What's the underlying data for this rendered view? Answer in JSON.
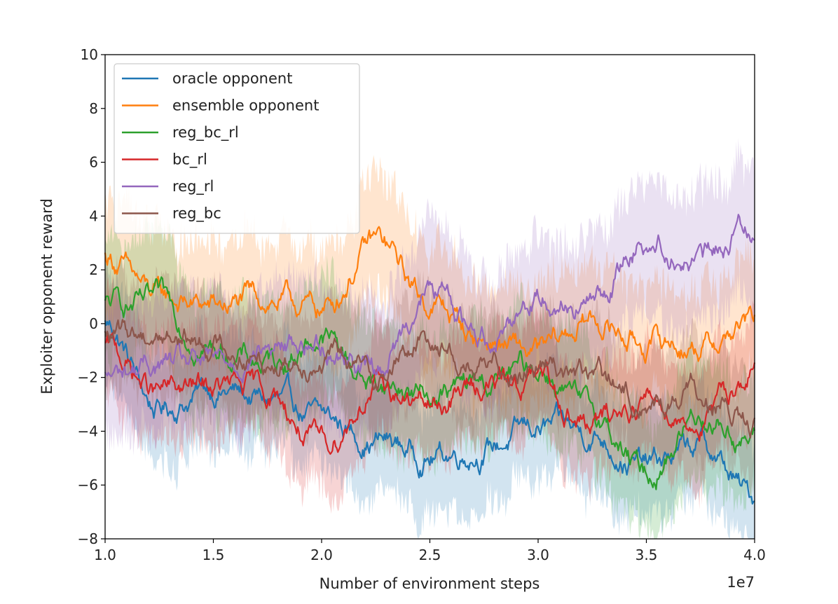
{
  "chart_data": {
    "type": "line",
    "title": "",
    "xlabel": "Number of environment steps",
    "ylabel": "Exploiter opponent reward",
    "x_offset_label": "1e7",
    "xlim": [
      1.0,
      4.0
    ],
    "ylim": [
      -8,
      10
    ],
    "xticks": [
      "1.0",
      "1.5",
      "2.0",
      "2.5",
      "3.0",
      "3.5",
      "4.0"
    ],
    "yticks": [
      "−8",
      "−6",
      "−4",
      "−2",
      "0",
      "2",
      "4",
      "6",
      "8",
      "10"
    ],
    "legend_position": "top-left",
    "x": [
      1.0,
      1.25,
      1.5,
      1.75,
      2.0,
      2.25,
      2.5,
      2.75,
      3.0,
      3.25,
      3.5,
      3.75,
      4.0
    ],
    "series": [
      {
        "name": "oracle opponent",
        "color": "#1f77b4",
        "values": [
          0.0,
          -3.2,
          -2.4,
          -2.9,
          -3.6,
          -4.3,
          -4.9,
          -4.6,
          -3.9,
          -4.1,
          -5.3,
          -4.6,
          -6.5
        ],
        "band": 2.0
      },
      {
        "name": "ensemble opponent",
        "color": "#ff7f0e",
        "values": [
          2.5,
          0.9,
          0.6,
          0.9,
          0.5,
          3.0,
          0.8,
          -0.6,
          -1.2,
          0.1,
          -0.7,
          -0.8,
          0.0
        ],
        "band": 2.2
      },
      {
        "name": "reg_bc_rl",
        "color": "#2ca02c",
        "values": [
          0.7,
          0.6,
          -0.9,
          -1.5,
          -0.5,
          -2.2,
          -2.6,
          -2.3,
          -1.6,
          -3.4,
          -5.6,
          -3.3,
          -4.3
        ],
        "band": 2.2
      },
      {
        "name": "bc_rl",
        "color": "#d62728",
        "values": [
          -0.9,
          -2.6,
          -2.4,
          -2.6,
          -4.6,
          -2.4,
          -3.1,
          -2.2,
          -2.1,
          -3.8,
          -2.8,
          -3.6,
          -1.8
        ],
        "band": 2.0
      },
      {
        "name": "reg_rl",
        "color": "#9467bd",
        "values": [
          -2.0,
          -1.5,
          -1.6,
          -0.9,
          -0.7,
          -1.6,
          1.2,
          -0.4,
          1.1,
          0.8,
          3.2,
          2.3,
          3.8
        ],
        "band": 2.4
      },
      {
        "name": "reg_bc",
        "color": "#8c564b",
        "values": [
          -0.5,
          -0.3,
          -0.7,
          -1.3,
          -1.1,
          -1.9,
          -0.5,
          -1.8,
          -1.3,
          -2.0,
          -3.0,
          -2.6,
          -4.0
        ],
        "band": 2.0
      }
    ]
  }
}
